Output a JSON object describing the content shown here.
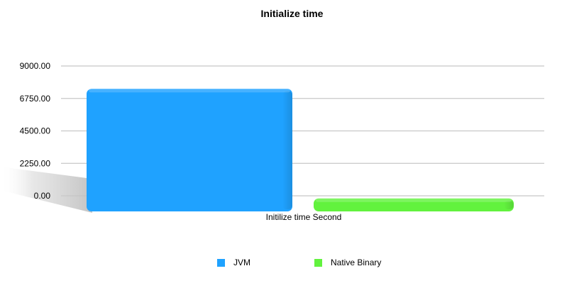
{
  "chart_data": {
    "type": "bar",
    "title": "Initialize time",
    "categories": [
      "Initilize time Second"
    ],
    "series": [
      {
        "name": "JVM",
        "values": [
          8200
        ],
        "color": "#1FA2FF"
      },
      {
        "name": "Native Binary",
        "values": [
          600
        ],
        "color": "#62F23E"
      }
    ],
    "ylim": [
      0,
      9000
    ],
    "yticks": [
      "0.00",
      "2250.00",
      "4500.00",
      "6750.00",
      "9000.00"
    ],
    "grid": true,
    "legend_position": "bottom"
  }
}
